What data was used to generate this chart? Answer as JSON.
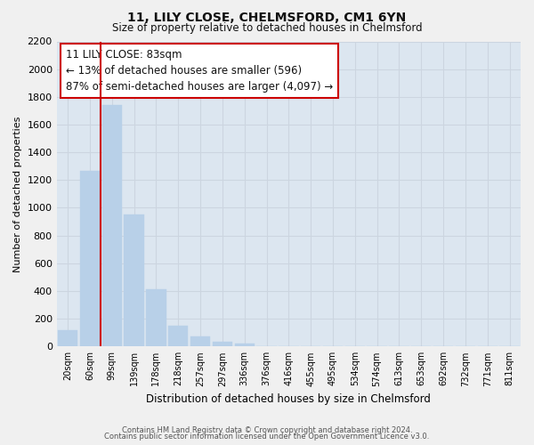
{
  "title": "11, LILY CLOSE, CHELMSFORD, CM1 6YN",
  "subtitle": "Size of property relative to detached houses in Chelmsford",
  "xlabel": "Distribution of detached houses by size in Chelmsford",
  "ylabel": "Number of detached properties",
  "categories": [
    "20sqm",
    "60sqm",
    "99sqm",
    "139sqm",
    "178sqm",
    "218sqm",
    "257sqm",
    "297sqm",
    "336sqm",
    "376sqm",
    "416sqm",
    "455sqm",
    "495sqm",
    "534sqm",
    "574sqm",
    "613sqm",
    "653sqm",
    "692sqm",
    "732sqm",
    "771sqm",
    "811sqm"
  ],
  "values": [
    120,
    1265,
    1740,
    950,
    415,
    150,
    75,
    35,
    20,
    0,
    0,
    0,
    0,
    0,
    0,
    0,
    0,
    0,
    0,
    0,
    0
  ],
  "bar_color": "#b8d0e8",
  "bar_edge_color": "#b8d0e8",
  "vline_x_index": 1.5,
  "vline_color": "#cc0000",
  "annotation_title": "11 LILY CLOSE: 83sqm",
  "annotation_line1": "← 13% of detached houses are smaller (596)",
  "annotation_line2": "87% of semi-detached houses are larger (4,097) →",
  "annotation_box_facecolor": "#ffffff",
  "annotation_box_edgecolor": "#cc0000",
  "ylim": [
    0,
    2200
  ],
  "yticks": [
    0,
    200,
    400,
    600,
    800,
    1000,
    1200,
    1400,
    1600,
    1800,
    2000,
    2200
  ],
  "grid_color": "#ccd5e0",
  "plot_bg_color": "#dce6f0",
  "fig_bg_color": "#f0f0f0",
  "footer1": "Contains HM Land Registry data © Crown copyright and database right 2024.",
  "footer2": "Contains public sector information licensed under the Open Government Licence v3.0."
}
